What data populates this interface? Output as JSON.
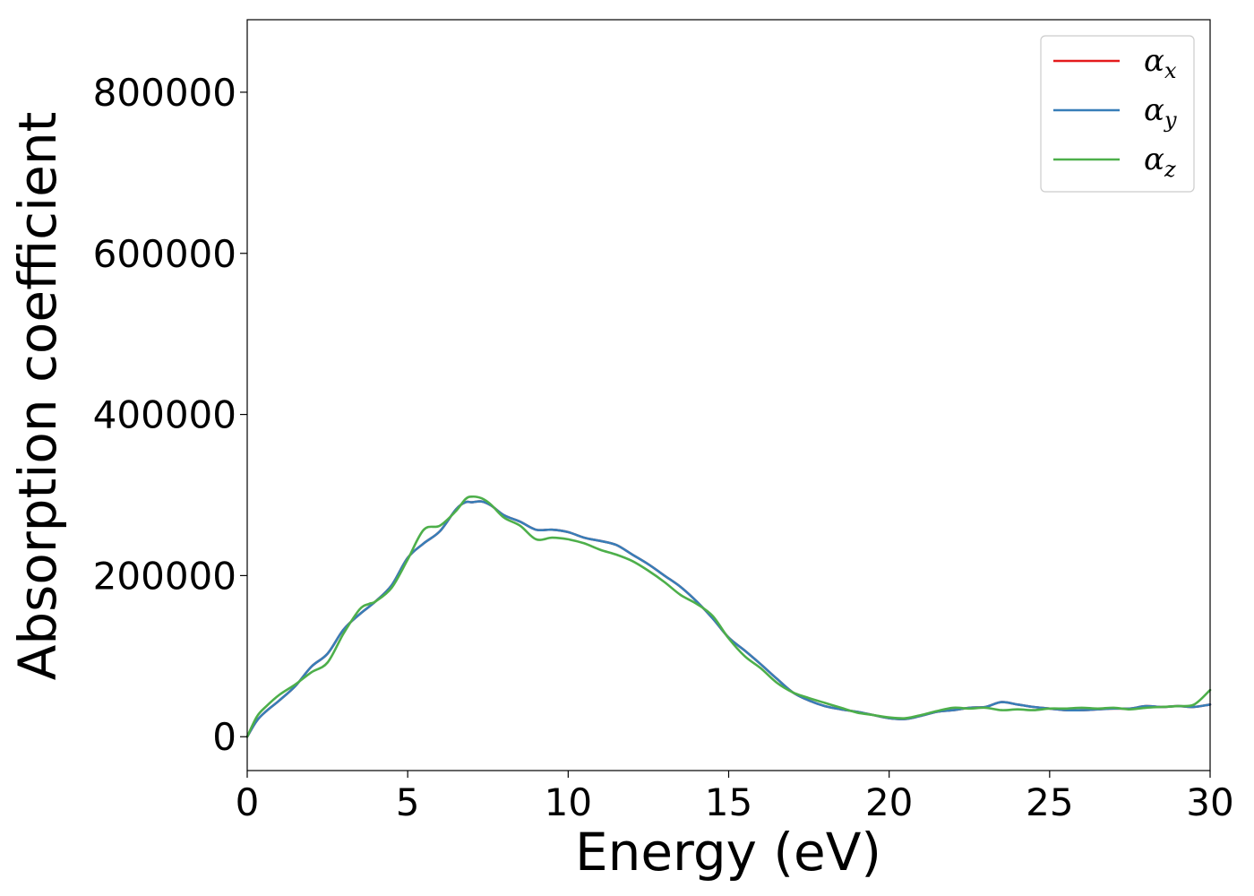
{
  "chart_data": {
    "type": "line",
    "xlabel": "Energy (eV)",
    "ylabel": "Absorption coefficient",
    "xlim": [
      0,
      30
    ],
    "ylim": [
      -42000,
      890000
    ],
    "xticks": [
      0,
      5,
      10,
      15,
      20,
      25,
      30
    ],
    "xtick_labels": [
      "0",
      "5",
      "10",
      "15",
      "20",
      "25",
      "30"
    ],
    "yticks": [
      0,
      200000,
      400000,
      600000,
      800000
    ],
    "ytick_labels": [
      "0",
      "200000",
      "400000",
      "600000",
      "800000"
    ],
    "grid": false,
    "legend_position": "top-right",
    "series": [
      {
        "name": "αx",
        "symbol": "α",
        "subscript": "x",
        "color": "#e41a1c",
        "x": [
          0,
          0.3,
          0.6,
          1,
          1.5,
          2,
          2.5,
          3,
          3.5,
          4,
          4.5,
          5,
          5.5,
          6,
          6.5,
          6.8,
          7,
          7.3,
          7.6,
          8,
          8.5,
          9,
          9.5,
          10,
          10.5,
          11,
          11.5,
          12,
          12.5,
          13,
          13.5,
          14,
          14.5,
          15,
          15.5,
          16,
          16.5,
          17,
          17.5,
          18,
          18.5,
          19,
          19.5,
          20,
          20.5,
          21,
          21.5,
          22,
          22.5,
          23,
          23.5,
          24,
          24.5,
          25,
          25.5,
          26,
          26.5,
          27,
          27.5,
          28,
          28.5,
          29,
          29.5,
          30
        ],
        "values": [
          0,
          20000,
          32000,
          45000,
          63000,
          87000,
          103000,
          133000,
          152000,
          168000,
          188000,
          222000,
          240000,
          255000,
          282000,
          291000,
          291000,
          292000,
          287000,
          275000,
          267000,
          257000,
          257000,
          254000,
          247000,
          243000,
          238000,
          226000,
          214000,
          200000,
          186000,
          168000,
          147000,
          123000,
          107000,
          90000,
          72000,
          55000,
          45000,
          38000,
          34000,
          31000,
          27000,
          23000,
          22000,
          26000,
          31000,
          33000,
          36000,
          37000,
          43000,
          40000,
          37000,
          35000,
          33000,
          33000,
          34000,
          35000,
          35000,
          38000,
          37000,
          38000,
          37000,
          40000
        ]
      },
      {
        "name": "αy",
        "symbol": "α",
        "subscript": "y",
        "color": "#377eb8",
        "x": [
          0,
          0.3,
          0.6,
          1,
          1.5,
          2,
          2.5,
          3,
          3.5,
          4,
          4.5,
          5,
          5.5,
          6,
          6.5,
          6.8,
          7,
          7.3,
          7.6,
          8,
          8.5,
          9,
          9.5,
          10,
          10.5,
          11,
          11.5,
          12,
          12.5,
          13,
          13.5,
          14,
          14.5,
          15,
          15.5,
          16,
          16.5,
          17,
          17.5,
          18,
          18.5,
          19,
          19.5,
          20,
          20.5,
          21,
          21.5,
          22,
          22.5,
          23,
          23.5,
          24,
          24.5,
          25,
          25.5,
          26,
          26.5,
          27,
          27.5,
          28,
          28.5,
          29,
          29.5,
          30
        ],
        "values": [
          0,
          20000,
          32000,
          45000,
          63000,
          87000,
          103000,
          133000,
          152000,
          168000,
          188000,
          222000,
          240000,
          255000,
          282000,
          291000,
          291000,
          292000,
          287000,
          275000,
          267000,
          257000,
          257000,
          254000,
          247000,
          243000,
          238000,
          226000,
          214000,
          200000,
          186000,
          168000,
          147000,
          123000,
          107000,
          90000,
          72000,
          55000,
          45000,
          38000,
          34000,
          31000,
          27000,
          23000,
          22000,
          26000,
          31000,
          33000,
          36000,
          37000,
          43000,
          40000,
          37000,
          35000,
          33000,
          33000,
          34000,
          35000,
          35000,
          38000,
          37000,
          38000,
          37000,
          40000
        ]
      },
      {
        "name": "αz",
        "symbol": "α",
        "subscript": "z",
        "color": "#4daf4a",
        "x": [
          0,
          0.3,
          0.6,
          1,
          1.5,
          2,
          2.5,
          3,
          3.5,
          3.8,
          4,
          4.5,
          5,
          5.5,
          6,
          6.5,
          6.8,
          7,
          7.3,
          7.6,
          8,
          8.5,
          9,
          9.5,
          10,
          10.5,
          11,
          11.5,
          12,
          12.5,
          13,
          13.5,
          14,
          14.5,
          15,
          15.5,
          16,
          16.5,
          17,
          17.5,
          18,
          18.5,
          19,
          19.5,
          20,
          20.5,
          21,
          21.5,
          22,
          22.5,
          23,
          23.5,
          24,
          24.5,
          25,
          25.5,
          26,
          26.5,
          27,
          27.5,
          28,
          28.5,
          29,
          29.5,
          30
        ],
        "values": [
          0,
          25000,
          38000,
          52000,
          65000,
          80000,
          92000,
          128000,
          158000,
          165000,
          168000,
          185000,
          220000,
          257000,
          262000,
          280000,
          295000,
          298000,
          296000,
          288000,
          272000,
          262000,
          245000,
          247000,
          245000,
          240000,
          232000,
          226000,
          218000,
          206000,
          192000,
          176000,
          165000,
          150000,
          122000,
          100000,
          85000,
          67000,
          55000,
          48000,
          42000,
          36000,
          30000,
          27000,
          24000,
          23000,
          27000,
          32000,
          36000,
          35000,
          36000,
          33000,
          34000,
          33000,
          35000,
          35000,
          36000,
          35000,
          36000,
          34000,
          36000,
          37000,
          38000,
          40000,
          58000
        ]
      }
    ]
  }
}
